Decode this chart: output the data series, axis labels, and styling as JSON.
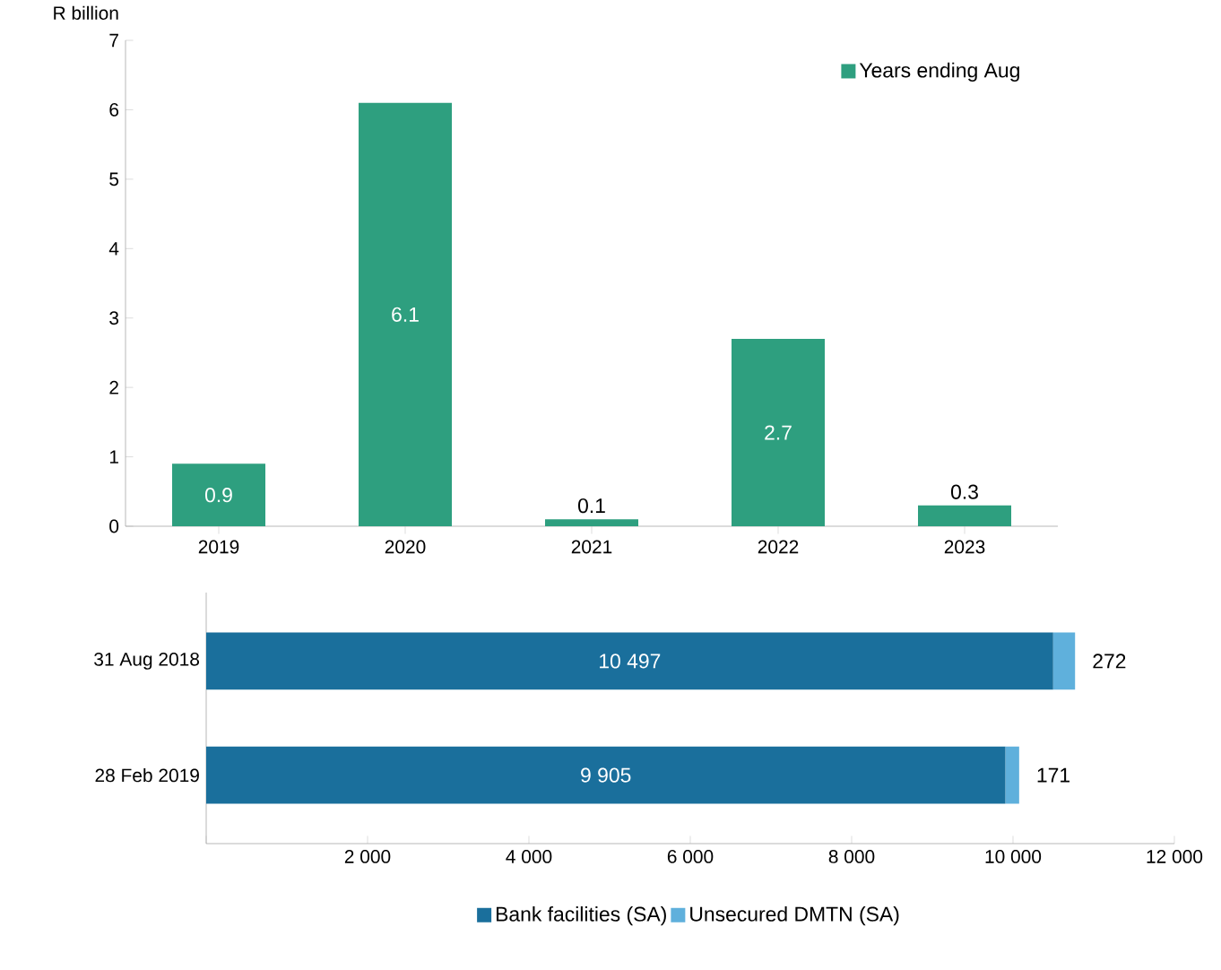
{
  "chart_data": [
    {
      "type": "bar",
      "ylabel": "R billion",
      "categories": [
        "2019",
        "2020",
        "2021",
        "2022",
        "2023"
      ],
      "series": [
        {
          "name": "Years ending Aug",
          "color": "#2e9f7f",
          "values": [
            0.9,
            6.1,
            0.1,
            2.7,
            0.3
          ]
        }
      ],
      "ylim": [
        0,
        7
      ],
      "yticks": [
        0,
        1,
        2,
        3,
        4,
        5,
        6,
        7
      ],
      "data_labels": true,
      "legend": "top right"
    },
    {
      "type": "bar",
      "orientation": "horizontal",
      "stacked": true,
      "categories": [
        "31 Aug 2018",
        "28 Feb 2019"
      ],
      "series": [
        {
          "name": "Bank facilities (SA)",
          "color": "#1a6f9c",
          "values": [
            10497,
            9905
          ],
          "value_labels": [
            "10 497",
            "9 905"
          ]
        },
        {
          "name": "Unsecured DMTN (SA)",
          "color": "#5fb0dc",
          "values": [
            272,
            171
          ],
          "value_labels": [
            "272",
            "171"
          ]
        }
      ],
      "xlim": [
        0,
        12000
      ],
      "xticks": [
        {
          "value": 0,
          "label": null
        },
        {
          "value": 2000,
          "label": "2 000"
        },
        {
          "value": 4000,
          "label": "4 000"
        },
        {
          "value": 6000,
          "label": "6 000"
        },
        {
          "value": 8000,
          "label": "8 000"
        },
        {
          "value": 10000,
          "label": "10 000"
        },
        {
          "value": 12000,
          "label": "12 000"
        }
      ],
      "legend": "bottom"
    }
  ]
}
